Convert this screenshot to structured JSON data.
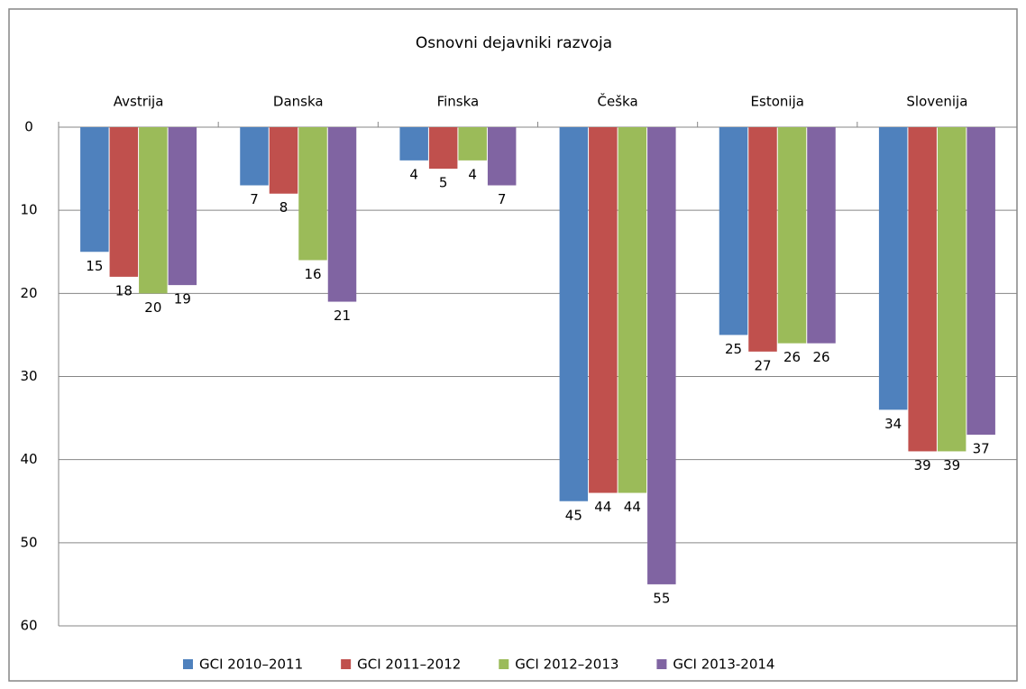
{
  "chart_data": {
    "type": "bar",
    "title": "Osnovni dejavniki razvoja",
    "categories": [
      "Avstrija",
      "Danska",
      "Finska",
      "Češka",
      "Estonija",
      "Slovenija"
    ],
    "series": [
      {
        "name": "GCI 2010–2011",
        "color": "#4f81bd",
        "values": [
          15,
          7,
          4,
          45,
          25,
          34
        ]
      },
      {
        "name": "GCI 2011–2012",
        "color": "#c0504d",
        "values": [
          18,
          8,
          5,
          44,
          27,
          39
        ]
      },
      {
        "name": "GCI 2012–2013",
        "color": "#9bbb59",
        "values": [
          20,
          16,
          4,
          44,
          26,
          39
        ]
      },
      {
        "name": "GCI 2013-2014",
        "color": "#8064a2",
        "values": [
          19,
          21,
          7,
          55,
          26,
          37
        ]
      }
    ],
    "ylim": [
      0,
      60
    ],
    "yticks": [
      0,
      10,
      20,
      30,
      40,
      50,
      60
    ],
    "y_inverted": true,
    "grid": true,
    "legend": "bottom"
  }
}
